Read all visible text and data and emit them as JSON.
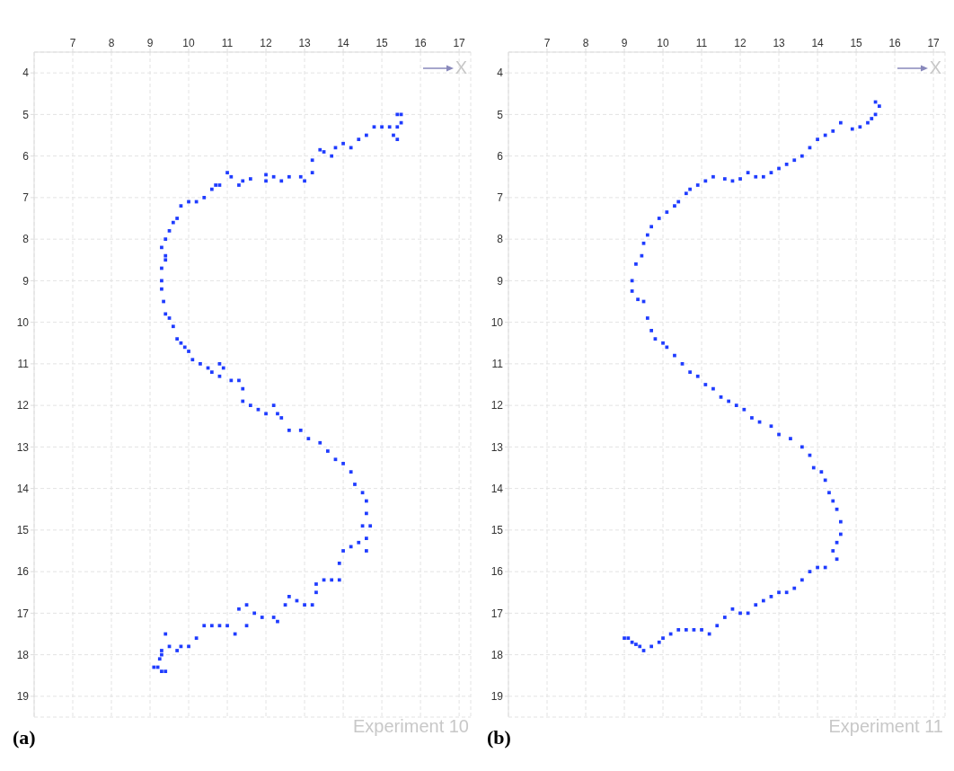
{
  "chart_data": [
    {
      "type": "scatter",
      "title": "(a)",
      "xlabel": "X",
      "annotations": [
        "Experiment 10"
      ],
      "xlim": [
        6.0,
        17.3
      ],
      "ylim": [
        19.5,
        3.5
      ],
      "xticks": [
        7,
        8,
        9,
        10,
        11,
        12,
        13,
        14,
        15,
        16,
        17
      ],
      "yticks": [
        4,
        5,
        6,
        7,
        8,
        9,
        10,
        11,
        12,
        13,
        14,
        15,
        16,
        17,
        18,
        19
      ],
      "grid": true,
      "marker": "square",
      "series": [
        {
          "color": "#1f3cff",
          "x": [
            15.4,
            15.4,
            15.5,
            15.4,
            15.3,
            15.5,
            15.2,
            15.0,
            14.8,
            14.6,
            14.4,
            14.2,
            14.0,
            13.8,
            13.7,
            13.5,
            13.4,
            13.2,
            13.2,
            13.0,
            12.9,
            12.6,
            12.4,
            12.2,
            12.0,
            12.0,
            11.6,
            11.4,
            11.3,
            11.1,
            11.0,
            10.8,
            10.7,
            10.6,
            10.4,
            10.2,
            10.0,
            9.8,
            9.7,
            9.6,
            9.5,
            9.4,
            9.3,
            9.4,
            9.4,
            9.3,
            9.3,
            9.3,
            9.35,
            9.4,
            9.5,
            9.6,
            9.7,
            9.8,
            9.9,
            10.0,
            10.1,
            10.3,
            10.5,
            10.6,
            10.8,
            10.8,
            10.9,
            11.1,
            11.3,
            11.4,
            11.4,
            11.6,
            11.8,
            12.0,
            12.2,
            12.3,
            12.4,
            12.6,
            12.9,
            13.1,
            13.4,
            13.6,
            13.8,
            14.0,
            14.2,
            14.3,
            14.5,
            14.6,
            14.6,
            14.5,
            14.7,
            14.6,
            14.6,
            14.4,
            14.2,
            14.0,
            13.9,
            13.9,
            13.7,
            13.5,
            13.3,
            13.3,
            13.2,
            13.0,
            12.8,
            12.6,
            12.5,
            12.3,
            12.2,
            11.9,
            11.7,
            11.5,
            11.5,
            11.3,
            11.2,
            11.0,
            10.8,
            10.6,
            10.4,
            10.2,
            10.0,
            9.8,
            9.7,
            9.5,
            9.4,
            9.3,
            9.25,
            9.2,
            9.3,
            9.4,
            9.1,
            9.3
          ],
          "values": [
            5.0,
            5.3,
            5.2,
            5.6,
            5.5,
            5.0,
            5.3,
            5.3,
            5.3,
            5.5,
            5.6,
            5.8,
            5.7,
            5.8,
            6.0,
            5.9,
            5.85,
            6.1,
            6.4,
            6.6,
            6.5,
            6.5,
            6.6,
            6.5,
            6.6,
            6.45,
            6.55,
            6.6,
            6.7,
            6.5,
            6.4,
            6.7,
            6.7,
            6.8,
            7.0,
            7.1,
            7.1,
            7.2,
            7.5,
            7.6,
            7.8,
            8.0,
            8.2,
            8.4,
            8.5,
            8.7,
            9.0,
            9.2,
            9.5,
            9.8,
            9.9,
            10.1,
            10.4,
            10.5,
            10.6,
            10.7,
            10.9,
            11.0,
            11.1,
            11.2,
            11.0,
            11.3,
            11.1,
            11.4,
            11.4,
            11.6,
            11.9,
            12.0,
            12.1,
            12.2,
            12.0,
            12.2,
            12.3,
            12.6,
            12.6,
            12.8,
            12.9,
            13.1,
            13.3,
            13.4,
            13.6,
            13.9,
            14.1,
            14.3,
            14.6,
            14.9,
            14.9,
            15.2,
            15.5,
            15.3,
            15.4,
            15.5,
            15.8,
            16.2,
            16.2,
            16.2,
            16.3,
            16.5,
            16.8,
            16.8,
            16.7,
            16.6,
            16.8,
            17.2,
            17.1,
            17.1,
            17.0,
            17.3,
            16.8,
            16.9,
            17.5,
            17.3,
            17.3,
            17.3,
            17.3,
            17.6,
            17.8,
            17.8,
            17.9,
            17.8,
            17.5,
            17.9,
            18.1,
            18.3,
            18.4,
            18.4,
            18.3,
            18.0
          ]
        }
      ]
    },
    {
      "type": "scatter",
      "title": "(b)",
      "xlabel": "X",
      "annotations": [
        "Experiment 11"
      ],
      "xlim": [
        6.0,
        17.3
      ],
      "ylim": [
        19.5,
        3.5
      ],
      "xticks": [
        7,
        8,
        9,
        10,
        11,
        12,
        13,
        14,
        15,
        16,
        17
      ],
      "yticks": [
        4,
        5,
        6,
        7,
        8,
        9,
        10,
        11,
        12,
        13,
        14,
        15,
        16,
        17,
        18,
        19
      ],
      "grid": true,
      "marker": "square",
      "series": [
        {
          "color": "#1f3cff",
          "x": [
            15.5,
            15.6,
            15.5,
            15.4,
            15.3,
            15.1,
            14.9,
            14.6,
            14.4,
            14.2,
            14.0,
            13.8,
            13.6,
            13.4,
            13.2,
            13.0,
            12.8,
            12.6,
            12.4,
            12.2,
            12.0,
            11.8,
            11.6,
            11.3,
            11.1,
            10.9,
            10.7,
            10.6,
            10.4,
            10.3,
            10.1,
            9.9,
            9.7,
            9.6,
            9.5,
            9.45,
            9.3,
            9.2,
            9.2,
            9.35,
            9.5,
            9.6,
            9.7,
            9.8,
            10.0,
            10.1,
            10.3,
            10.5,
            10.7,
            10.9,
            11.1,
            11.3,
            11.5,
            11.7,
            11.9,
            12.1,
            12.3,
            12.5,
            12.8,
            13.0,
            13.3,
            13.6,
            13.8,
            13.9,
            14.1,
            14.2,
            14.3,
            14.4,
            14.5,
            14.6,
            14.6,
            14.5,
            14.4,
            14.5,
            14.2,
            14.0,
            13.8,
            13.6,
            13.4,
            13.2,
            13.0,
            12.8,
            12.6,
            12.4,
            12.2,
            12.0,
            11.8,
            11.6,
            11.4,
            11.2,
            11.0,
            10.8,
            10.6,
            10.4,
            10.2,
            10.0,
            9.9,
            9.7,
            9.5,
            9.4,
            9.3,
            9.2,
            9.1,
            9.0
          ],
          "values": [
            4.7,
            4.8,
            5.0,
            5.1,
            5.2,
            5.3,
            5.35,
            5.2,
            5.4,
            5.5,
            5.6,
            5.8,
            6.0,
            6.1,
            6.2,
            6.3,
            6.4,
            6.5,
            6.5,
            6.4,
            6.55,
            6.6,
            6.55,
            6.5,
            6.6,
            6.7,
            6.8,
            6.9,
            7.1,
            7.2,
            7.35,
            7.5,
            7.7,
            7.9,
            8.1,
            8.4,
            8.6,
            9.0,
            9.25,
            9.45,
            9.5,
            9.9,
            10.2,
            10.4,
            10.5,
            10.6,
            10.8,
            11.0,
            11.2,
            11.3,
            11.5,
            11.6,
            11.8,
            11.9,
            12.0,
            12.1,
            12.3,
            12.4,
            12.5,
            12.7,
            12.8,
            13.0,
            13.2,
            13.5,
            13.6,
            13.8,
            14.1,
            14.3,
            14.5,
            14.8,
            15.1,
            15.3,
            15.5,
            15.7,
            15.9,
            15.9,
            16.0,
            16.2,
            16.4,
            16.5,
            16.5,
            16.6,
            16.7,
            16.8,
            17.0,
            17.0,
            16.9,
            17.1,
            17.3,
            17.5,
            17.4,
            17.4,
            17.4,
            17.4,
            17.5,
            17.6,
            17.7,
            17.8,
            17.9,
            17.8,
            17.75,
            17.7,
            17.6,
            17.6
          ]
        }
      ]
    }
  ]
}
